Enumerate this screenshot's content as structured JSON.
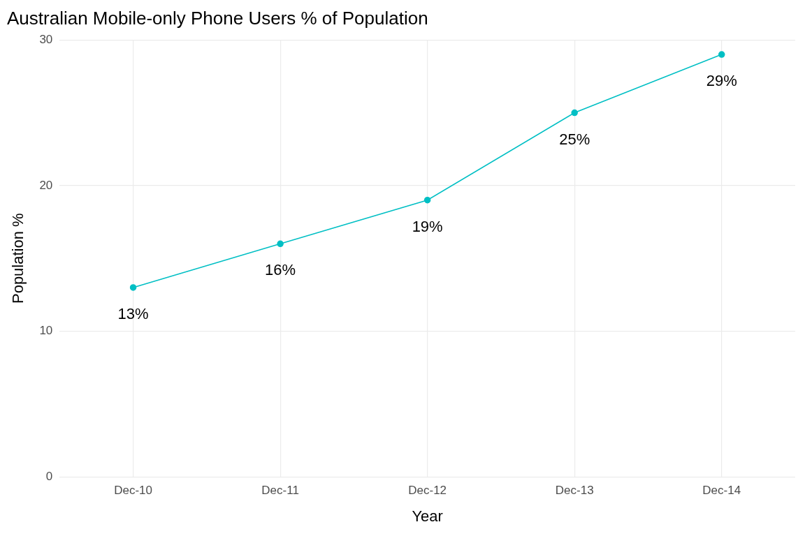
{
  "chart_data": {
    "type": "line",
    "title": "Australian Mobile-only Phone Users % of Population",
    "x_label": "Year",
    "y_label": "Population %",
    "categories": [
      "Dec-10",
      "Dec-11",
      "Dec-12",
      "Dec-13",
      "Dec-14"
    ],
    "values": [
      13,
      16,
      19,
      25,
      29
    ],
    "value_labels": [
      "13%",
      "16%",
      "19%",
      "25%",
      "29%"
    ],
    "data_labels": true,
    "color": "#00BFC4",
    "marker": "circle",
    "ylim": [
      0,
      30
    ],
    "yticks": [
      0,
      10,
      20,
      30
    ],
    "grid": true
  }
}
